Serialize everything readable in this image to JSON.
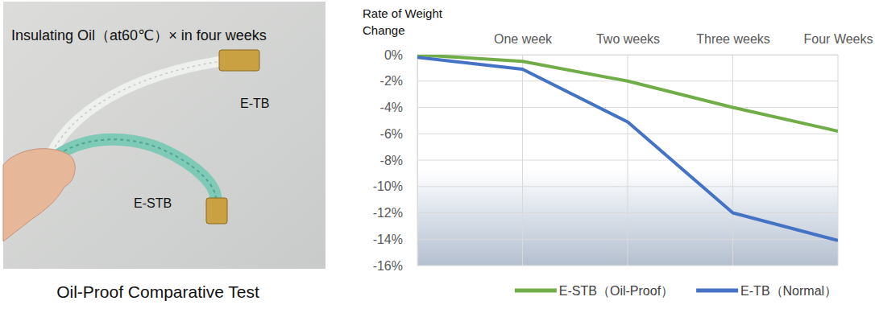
{
  "panel": {
    "title": "Insulating Oil（at60℃）× in four weeks",
    "labels": [
      "E-TB",
      "E-STB"
    ],
    "caption": "Oil-Proof Comparative Test"
  },
  "chart_data": {
    "type": "line",
    "y_label": "Rate of Weight Change",
    "categories": [
      null,
      "One week",
      "Two weeks",
      "Three weeks",
      "Four Weeks"
    ],
    "series": [
      {
        "name": "E-STB（Oil-Proof）",
        "color": "#70ad47",
        "values": [
          0,
          -0.5,
          -2,
          -4,
          -5.8
        ]
      },
      {
        "name": "E-TB（Normal）",
        "color": "#4472c4",
        "values": [
          -0.2,
          -1.1,
          -5.1,
          -12,
          -14.1
        ]
      }
    ],
    "ylim": [
      -16,
      0
    ],
    "yticks": [
      {
        "value": 0,
        "label": "0%"
      },
      {
        "value": -2,
        "label": "-2%"
      },
      {
        "value": -4,
        "label": "-4%"
      },
      {
        "value": -6,
        "label": "-6%"
      },
      {
        "value": -8,
        "label": "-8%"
      },
      {
        "value": -10,
        "label": "-10%"
      },
      {
        "value": -12,
        "label": "-12%"
      },
      {
        "value": -14,
        "label": "-14%"
      },
      {
        "value": -16,
        "label": "-16%"
      }
    ],
    "grid": true,
    "legend": "bottom"
  }
}
